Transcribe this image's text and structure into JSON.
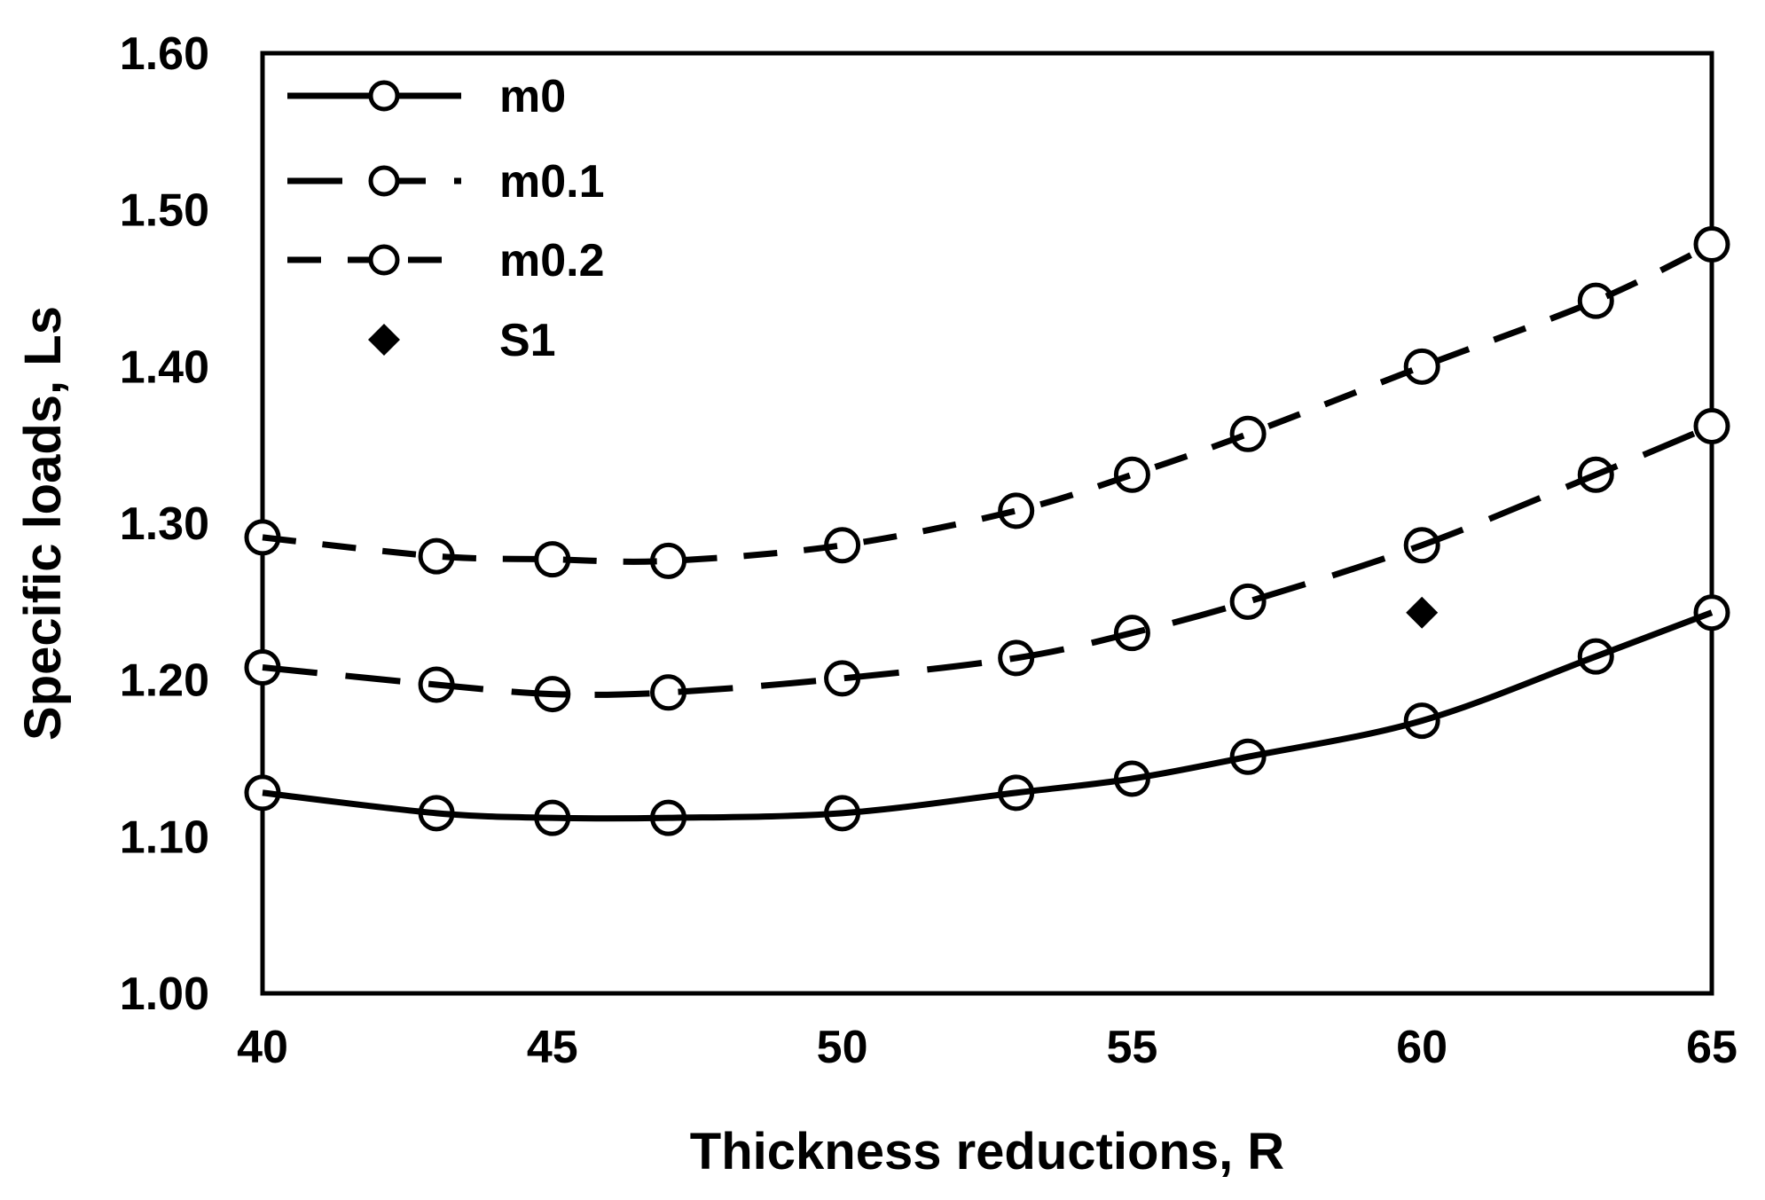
{
  "chart_data": {
    "type": "line",
    "xlabel": "Thickness reductions, R",
    "ylabel": "Specific loads, Ls",
    "xlim": [
      40,
      65
    ],
    "ylim": [
      1.0,
      1.6
    ],
    "xticks": [
      "40",
      "45",
      "50",
      "55",
      "60",
      "65"
    ],
    "yticks": [
      "1.00",
      "1.10",
      "1.20",
      "1.30",
      "1.40",
      "1.50",
      "1.60"
    ],
    "grid": false,
    "legend_position": "top-left",
    "series": [
      {
        "name": "m0",
        "line": "solid",
        "marker": "open-circle",
        "x": [
          40,
          43,
          45,
          47,
          50,
          53,
          55,
          57,
          60,
          63,
          65
        ],
        "y": [
          1.128,
          1.115,
          1.112,
          1.112,
          1.115,
          1.128,
          1.137,
          1.151,
          1.174,
          1.215,
          1.243
        ]
      },
      {
        "name": "m0.1",
        "line": "long-dash",
        "marker": "open-circle",
        "x": [
          40,
          43,
          45,
          47,
          50,
          53,
          55,
          57,
          60,
          63,
          65
        ],
        "y": [
          1.208,
          1.197,
          1.191,
          1.192,
          1.201,
          1.214,
          1.23,
          1.25,
          1.286,
          1.331,
          1.362
        ]
      },
      {
        "name": "m0.2",
        "line": "dash",
        "marker": "open-circle",
        "x": [
          40,
          43,
          45,
          47,
          50,
          53,
          55,
          57,
          60,
          63,
          65
        ],
        "y": [
          1.291,
          1.279,
          1.277,
          1.276,
          1.286,
          1.308,
          1.331,
          1.357,
          1.4,
          1.442,
          1.478
        ]
      },
      {
        "name": "S1",
        "line": "none",
        "marker": "filled-diamond",
        "x": [
          60
        ],
        "y": [
          1.243
        ]
      }
    ]
  }
}
